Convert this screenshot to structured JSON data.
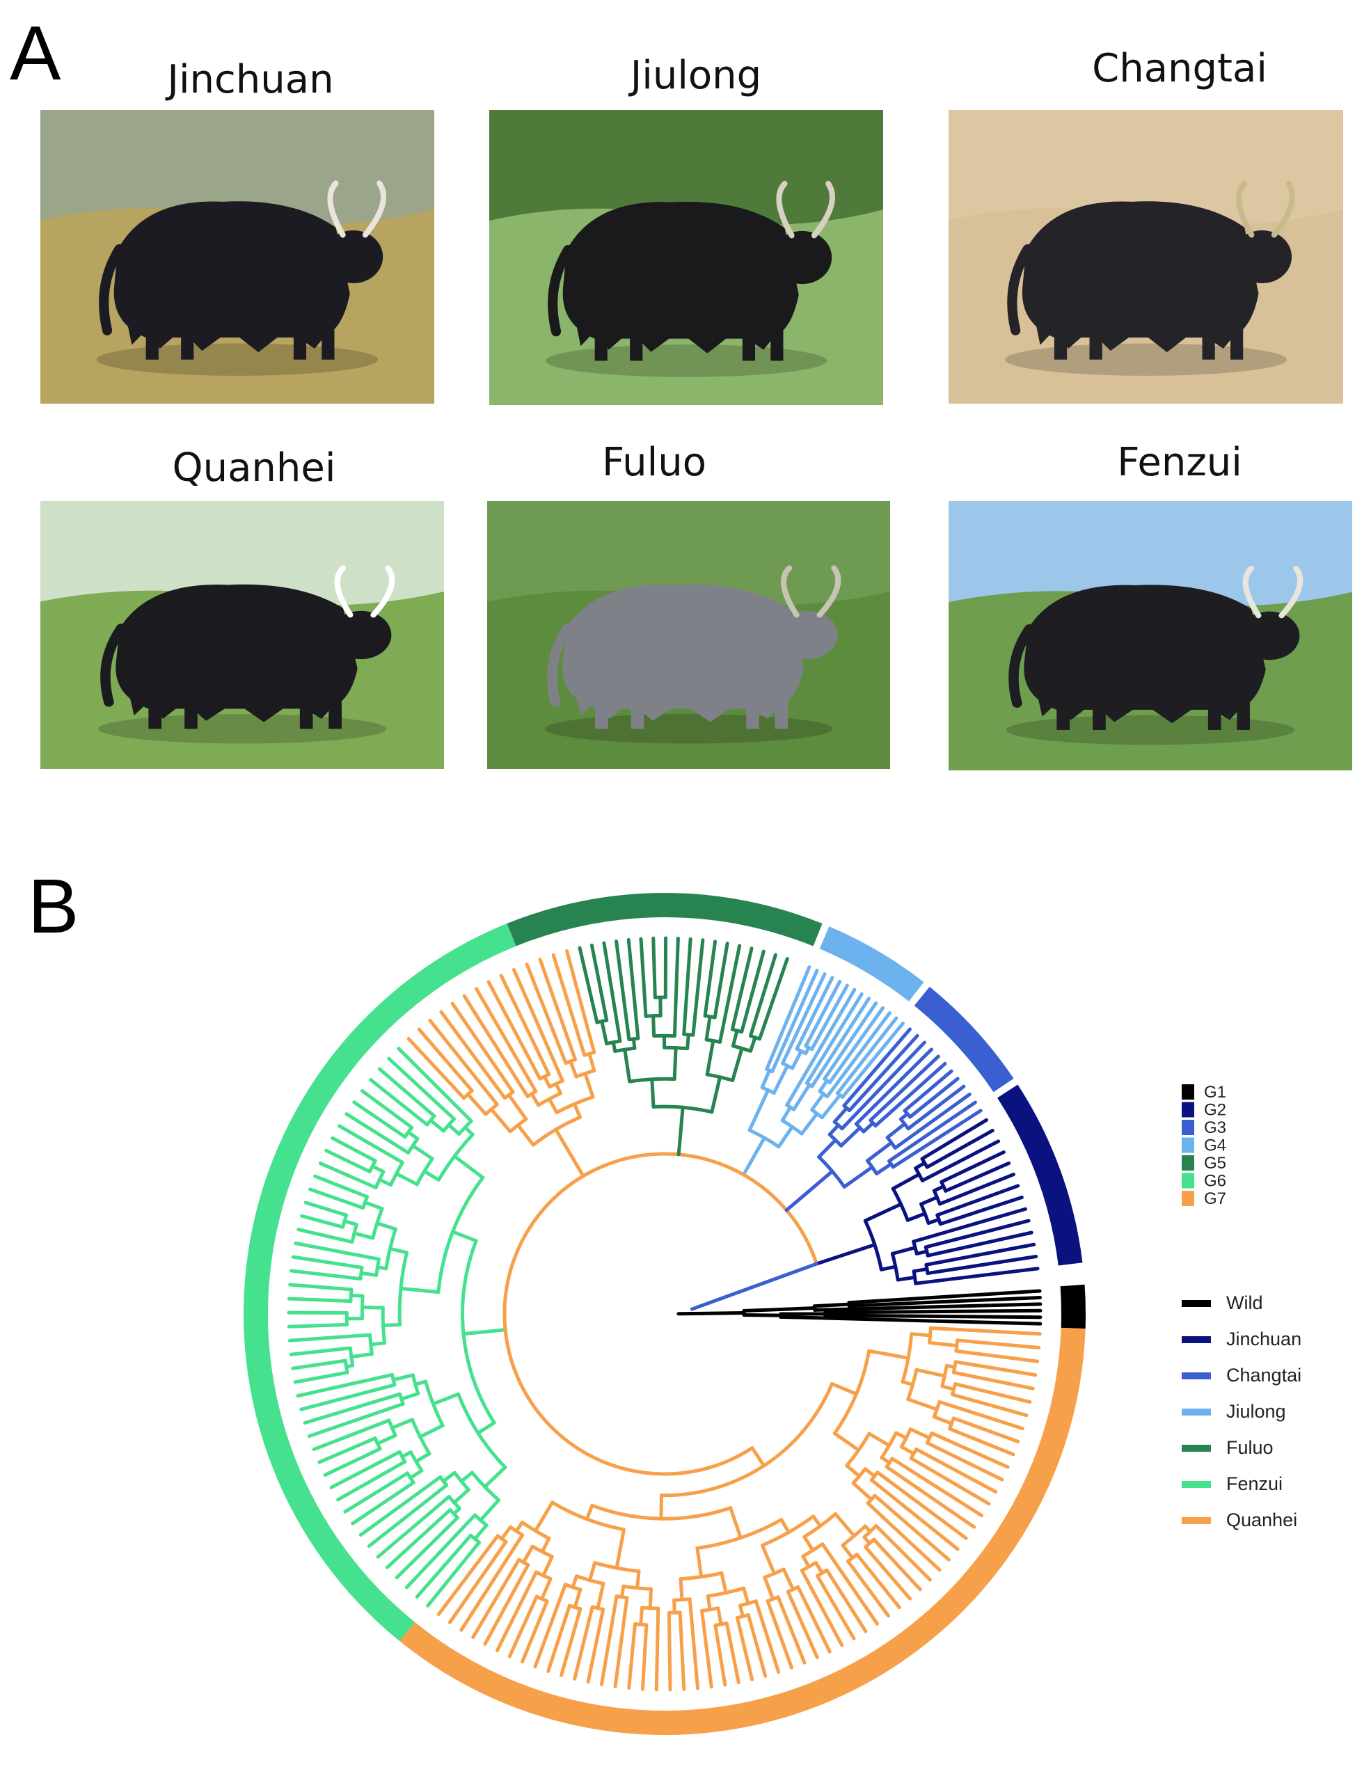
{
  "panels": {
    "a": "A",
    "b": "B"
  },
  "photos": [
    {
      "name": "Jinchuan",
      "sky": "#9aa58a",
      "ground": "#b6a460",
      "yak": "#1c1b22",
      "accent": "#e9e4dc"
    },
    {
      "name": "Jiulong",
      "sky": "#4f7a3a",
      "ground": "#8ab56a",
      "yak": "#1a1a1d",
      "accent": "#d8d1c2"
    },
    {
      "name": "Changtai",
      "sky": "#ddc7a2",
      "ground": "#d8c199",
      "yak": "#232328",
      "accent": "#c9b98e"
    },
    {
      "name": "Quanhei",
      "sky": "#cfe0c8",
      "ground": "#7fab55",
      "yak": "#1b1b1f",
      "accent": "#ffffff"
    },
    {
      "name": "Fuluo",
      "sky": "#6e9a52",
      "ground": "#5e8c3f",
      "yak": "#7f8189",
      "accent": "#c8c3b5"
    },
    {
      "name": "Fenzui",
      "sky": "#9cc7ea",
      "ground": "#6f9e4e",
      "yak": "#1d1d22",
      "accent": "#e8e6dc"
    }
  ],
  "chart_data": {
    "type": "circular-tree",
    "group_legend": [
      {
        "label": "G1",
        "color": "#000000"
      },
      {
        "label": "G2",
        "color": "#0a1280"
      },
      {
        "label": "G3",
        "color": "#3a5fd0"
      },
      {
        "label": "G4",
        "color": "#6cb2ee"
      },
      {
        "label": "G5",
        "color": "#27834f"
      },
      {
        "label": "G6",
        "color": "#45e18e"
      },
      {
        "label": "G7",
        "color": "#f7a04a"
      }
    ],
    "breed_legend": [
      {
        "label": "Wild",
        "color": "#000000"
      },
      {
        "label": "Jinchuan",
        "color": "#0a1280"
      },
      {
        "label": "Changtai",
        "color": "#3a5fd0"
      },
      {
        "label": "Jiulong",
        "color": "#6cb2ee"
      },
      {
        "label": "Fuluo",
        "color": "#27834f"
      },
      {
        "label": "Fenzui",
        "color": "#45e18e"
      },
      {
        "label": "Quanhei",
        "color": "#f7a04a"
      }
    ],
    "outer_ring": [
      {
        "breed": "Wild",
        "color": "#000000",
        "start_deg": -2,
        "end_deg": 4
      },
      {
        "breed": "Jinchuan",
        "color": "#0a1280",
        "start_deg": 7,
        "end_deg": 33
      },
      {
        "breed": "Changtai",
        "color": "#3a5fd0",
        "start_deg": 34,
        "end_deg": 51
      },
      {
        "breed": "Jiulong",
        "color": "#6cb2ee",
        "start_deg": 52,
        "end_deg": 67
      },
      {
        "breed": "Fuluo",
        "color": "#27834f",
        "start_deg": 68,
        "end_deg": 112
      },
      {
        "breed": "Fenzui",
        "color": "#45e18e",
        "start_deg": 112,
        "end_deg": 231
      },
      {
        "breed": "Quanhei",
        "color": "#f7a04a",
        "start_deg": 231,
        "end_deg": 358
      }
    ],
    "clades": [
      {
        "group": "G1",
        "color": "#000000",
        "start_deg": -2,
        "end_deg": 4,
        "leaves": 6
      },
      {
        "group": "G2",
        "color": "#0a1280",
        "start_deg": 6,
        "end_deg": 32,
        "leaves": 14
      },
      {
        "group": "G3",
        "color": "#3a5fd0",
        "start_deg": 32,
        "end_deg": 50,
        "leaves": 12
      },
      {
        "group": "G4",
        "color": "#6cb2ee",
        "start_deg": 50,
        "end_deg": 68,
        "leaves": 14
      },
      {
        "group": "G5",
        "color": "#27834f",
        "start_deg": 70,
        "end_deg": 104,
        "leaves": 18
      },
      {
        "group": "G7",
        "color": "#f7a04a",
        "start_deg": 104,
        "end_deg": 134,
        "leaves": 14
      },
      {
        "group": "G6",
        "color": "#45e18e",
        "start_deg": 134,
        "end_deg": 232,
        "leaves": 46
      },
      {
        "group": "G7",
        "color": "#f7a04a",
        "start_deg": 232,
        "end_deg": 358,
        "leaves": 60
      }
    ]
  }
}
